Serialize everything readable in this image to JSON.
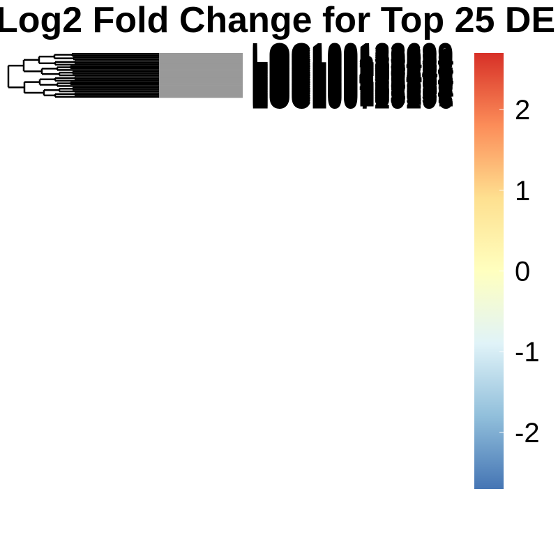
{
  "chart_data": {
    "type": "heatmap",
    "title": "Log2 Fold Change for Top 25 DE",
    "row_labels": [
      "LOC100133699",
      "LOC100128239",
      "LOC100129934",
      "LOC100131691",
      "LOC100133489",
      "LOC100132062",
      "LOC100132287",
      "LOC100287934",
      "LOC100288778",
      "LOC100289341",
      "LOC100289656",
      "LOC100130417",
      "LOC100129405",
      "LOC100131754",
      "LOC100127998",
      "LOC100128815",
      "LOC100129518",
      "LOC100130250",
      "LOC100130890",
      "LOC100131098",
      "LOC100132174",
      "LOC100132832",
      "LOC100133161",
      "LOC100133331",
      "LOC100729296"
    ],
    "column_labels": [],
    "values": [
      0,
      0,
      0,
      0,
      0,
      0,
      0,
      0,
      0,
      0,
      0,
      0,
      0,
      0,
      0,
      0,
      0,
      0,
      0,
      0,
      0,
      0,
      0,
      0,
      0
    ],
    "colorbar": {
      "ticks": [
        2,
        1,
        0,
        -1,
        -2
      ],
      "range": [
        -2.7,
        2.7
      ],
      "palette": [
        "#4575b4",
        "#91bfdb",
        "#e0f3f8",
        "#ffffbf",
        "#fee090",
        "#fc8d59",
        "#d73027"
      ],
      "na_color": "#999999"
    },
    "grid": false,
    "legend": "right"
  }
}
